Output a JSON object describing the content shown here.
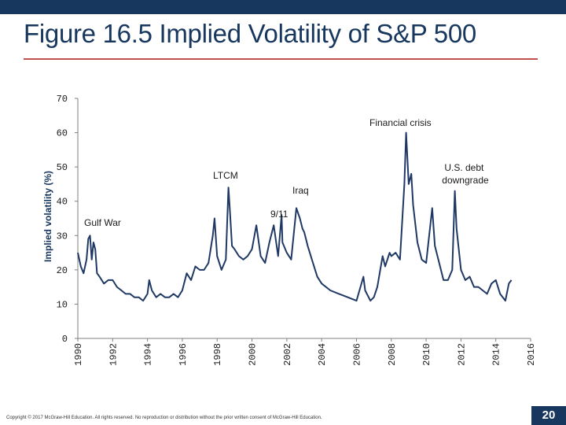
{
  "slide": {
    "title": "Figure 16.5 Implied Volatility of S&P 500",
    "footer": "Copyright © 2017 McGraw-Hill Education. All rights reserved. No reproduction or distribution without the prior written consent of McGraw-Hill Education.",
    "page_number": "20",
    "colors": {
      "header_bar": "#17375e",
      "title_rule": "#c0504d",
      "series_line": "#1f3864"
    }
  },
  "chart_data": {
    "type": "line",
    "title": "",
    "xlabel": "",
    "ylabel": "Implied volatility (%)",
    "xlim": [
      1990,
      2016
    ],
    "ylim": [
      0,
      70
    ],
    "x_ticks": [
      "1990",
      "1992",
      "1994",
      "1996",
      "1998",
      "2000",
      "2002",
      "2004",
      "2006",
      "2008",
      "2010",
      "2012",
      "2014",
      "2016"
    ],
    "y_ticks": [
      "0",
      "10",
      "20",
      "30",
      "40",
      "50",
      "60",
      "70"
    ],
    "grid": false,
    "series": [
      {
        "x": [
          1990.0,
          1990.17,
          1990.33,
          1990.5,
          1990.6,
          1990.7,
          1990.8,
          1990.9,
          1991.0,
          1991.1,
          1991.25,
          1991.5,
          1991.75,
          1992.0,
          1992.25,
          1992.5,
          1992.75,
          1993.0,
          1993.25,
          1993.5,
          1993.75,
          1994.0,
          1994.1,
          1994.25,
          1994.5,
          1994.75,
          1995.0,
          1995.25,
          1995.5,
          1995.75,
          1996.0,
          1996.25,
          1996.5,
          1996.75,
          1997.0,
          1997.25,
          1997.5,
          1997.75,
          1997.85,
          1998.0,
          1998.25,
          1998.5,
          1998.65,
          1998.75,
          1998.85,
          1999.0,
          1999.25,
          1999.5,
          1999.75,
          2000.0,
          2000.25,
          2000.5,
          2000.75,
          2001.0,
          2001.25,
          2001.5,
          2001.7,
          2001.75,
          2002.0,
          2002.25,
          2002.55,
          2002.75,
          2002.9,
          2003.0,
          2003.2,
          2003.5,
          2003.75,
          2004.0,
          2004.5,
          2005.0,
          2005.5,
          2006.0,
          2006.4,
          2006.5,
          2006.8,
          2007.0,
          2007.2,
          2007.5,
          2007.65,
          2007.9,
          2008.0,
          2008.25,
          2008.5,
          2008.75,
          2008.85,
          2009.0,
          2009.15,
          2009.25,
          2009.5,
          2009.75,
          2010.0,
          2010.35,
          2010.5,
          2010.75,
          2011.0,
          2011.25,
          2011.5,
          2011.65,
          2011.75,
          2012.0,
          2012.25,
          2012.5,
          2012.75,
          2013.0,
          2013.25,
          2013.5,
          2013.75,
          2014.0,
          2014.25,
          2014.55,
          2014.75,
          2014.9
        ],
        "values": [
          25,
          21,
          19,
          23,
          29,
          30,
          23,
          28,
          26,
          19,
          18,
          16,
          17,
          17,
          15,
          14,
          13,
          13,
          12,
          12,
          11,
          13,
          17,
          14,
          12,
          13,
          12,
          12,
          13,
          12,
          14,
          19,
          17,
          21,
          20,
          20,
          22,
          30,
          35,
          24,
          20,
          23,
          44,
          36,
          27,
          26,
          24,
          23,
          24,
          26,
          33,
          24,
          22,
          28,
          33,
          24,
          36,
          28,
          25,
          23,
          38,
          35,
          32,
          31,
          27,
          22,
          18,
          16,
          14,
          13,
          12,
          11,
          18,
          14,
          11,
          12,
          15,
          24,
          21,
          25,
          24,
          25,
          23,
          45,
          60,
          45,
          48,
          39,
          28,
          23,
          22,
          38,
          27,
          22,
          17,
          17,
          20,
          43,
          32,
          20,
          17,
          18,
          15,
          15,
          14,
          13,
          16,
          17,
          13,
          11,
          16,
          17
        ]
      }
    ],
    "annotations": [
      {
        "text": "Gulf War",
        "x": 1990.7,
        "y": 30
      },
      {
        "text": "LTCM",
        "x": 1998.65,
        "y": 44
      },
      {
        "text": "9/11",
        "x": 2001.7,
        "y": 36
      },
      {
        "text": "Iraq",
        "x": 2003.0,
        "y": 32
      },
      {
        "text": "Financial crisis",
        "x": 2008.85,
        "y": 60
      },
      {
        "text": "U.S. debt downgrade",
        "x": 2011.65,
        "y": 43
      }
    ]
  }
}
